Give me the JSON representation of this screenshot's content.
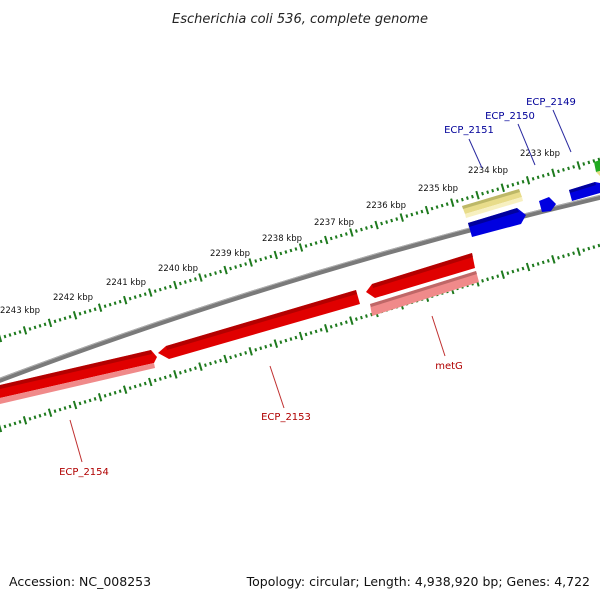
{
  "title": "Escherichia coli 536, complete genome",
  "footer": {
    "accession": "Accession: NC_008253",
    "topology": "Topology: circular; Length: 4,938,920 bp; Genes: 4,722"
  },
  "colors": {
    "backbone": "#808080",
    "tick": "#1e7a1e",
    "minus_strand": "#e00000",
    "minus_strand_light": "#f08a8a",
    "plus_strand": "#0000e0",
    "plus_strand_yellow": "#e8dc8a",
    "plus_strand_green": "#22aa22",
    "label_minus": "#b00000",
    "label_plus": "#000099"
  },
  "tick_labels": [
    {
      "kbp": 2233,
      "text": "2233 kbp"
    },
    {
      "kbp": 2234,
      "text": "2234 kbp"
    },
    {
      "kbp": 2235,
      "text": "2235 kbp"
    },
    {
      "kbp": 2236,
      "text": "2236 kbp"
    },
    {
      "kbp": 2237,
      "text": "2237 kbp"
    },
    {
      "kbp": 2238,
      "text": "2238 kbp"
    },
    {
      "kbp": 2239,
      "text": "2239 kbp"
    },
    {
      "kbp": 2240,
      "text": "2240 kbp"
    },
    {
      "kbp": 2241,
      "text": "2241 kbp"
    },
    {
      "kbp": 2242,
      "text": "2242 kbp"
    },
    {
      "kbp": 2243,
      "text": "2243 kbp"
    }
  ],
  "genes": [
    {
      "name": "ECP_2149",
      "strand": "+"
    },
    {
      "name": "ECP_2150",
      "strand": "+"
    },
    {
      "name": "ECP_2151",
      "strand": "+"
    },
    {
      "name": "metG",
      "strand": "-"
    },
    {
      "name": "ECP_2153",
      "strand": "-"
    },
    {
      "name": "ECP_2154",
      "strand": "-"
    }
  ]
}
